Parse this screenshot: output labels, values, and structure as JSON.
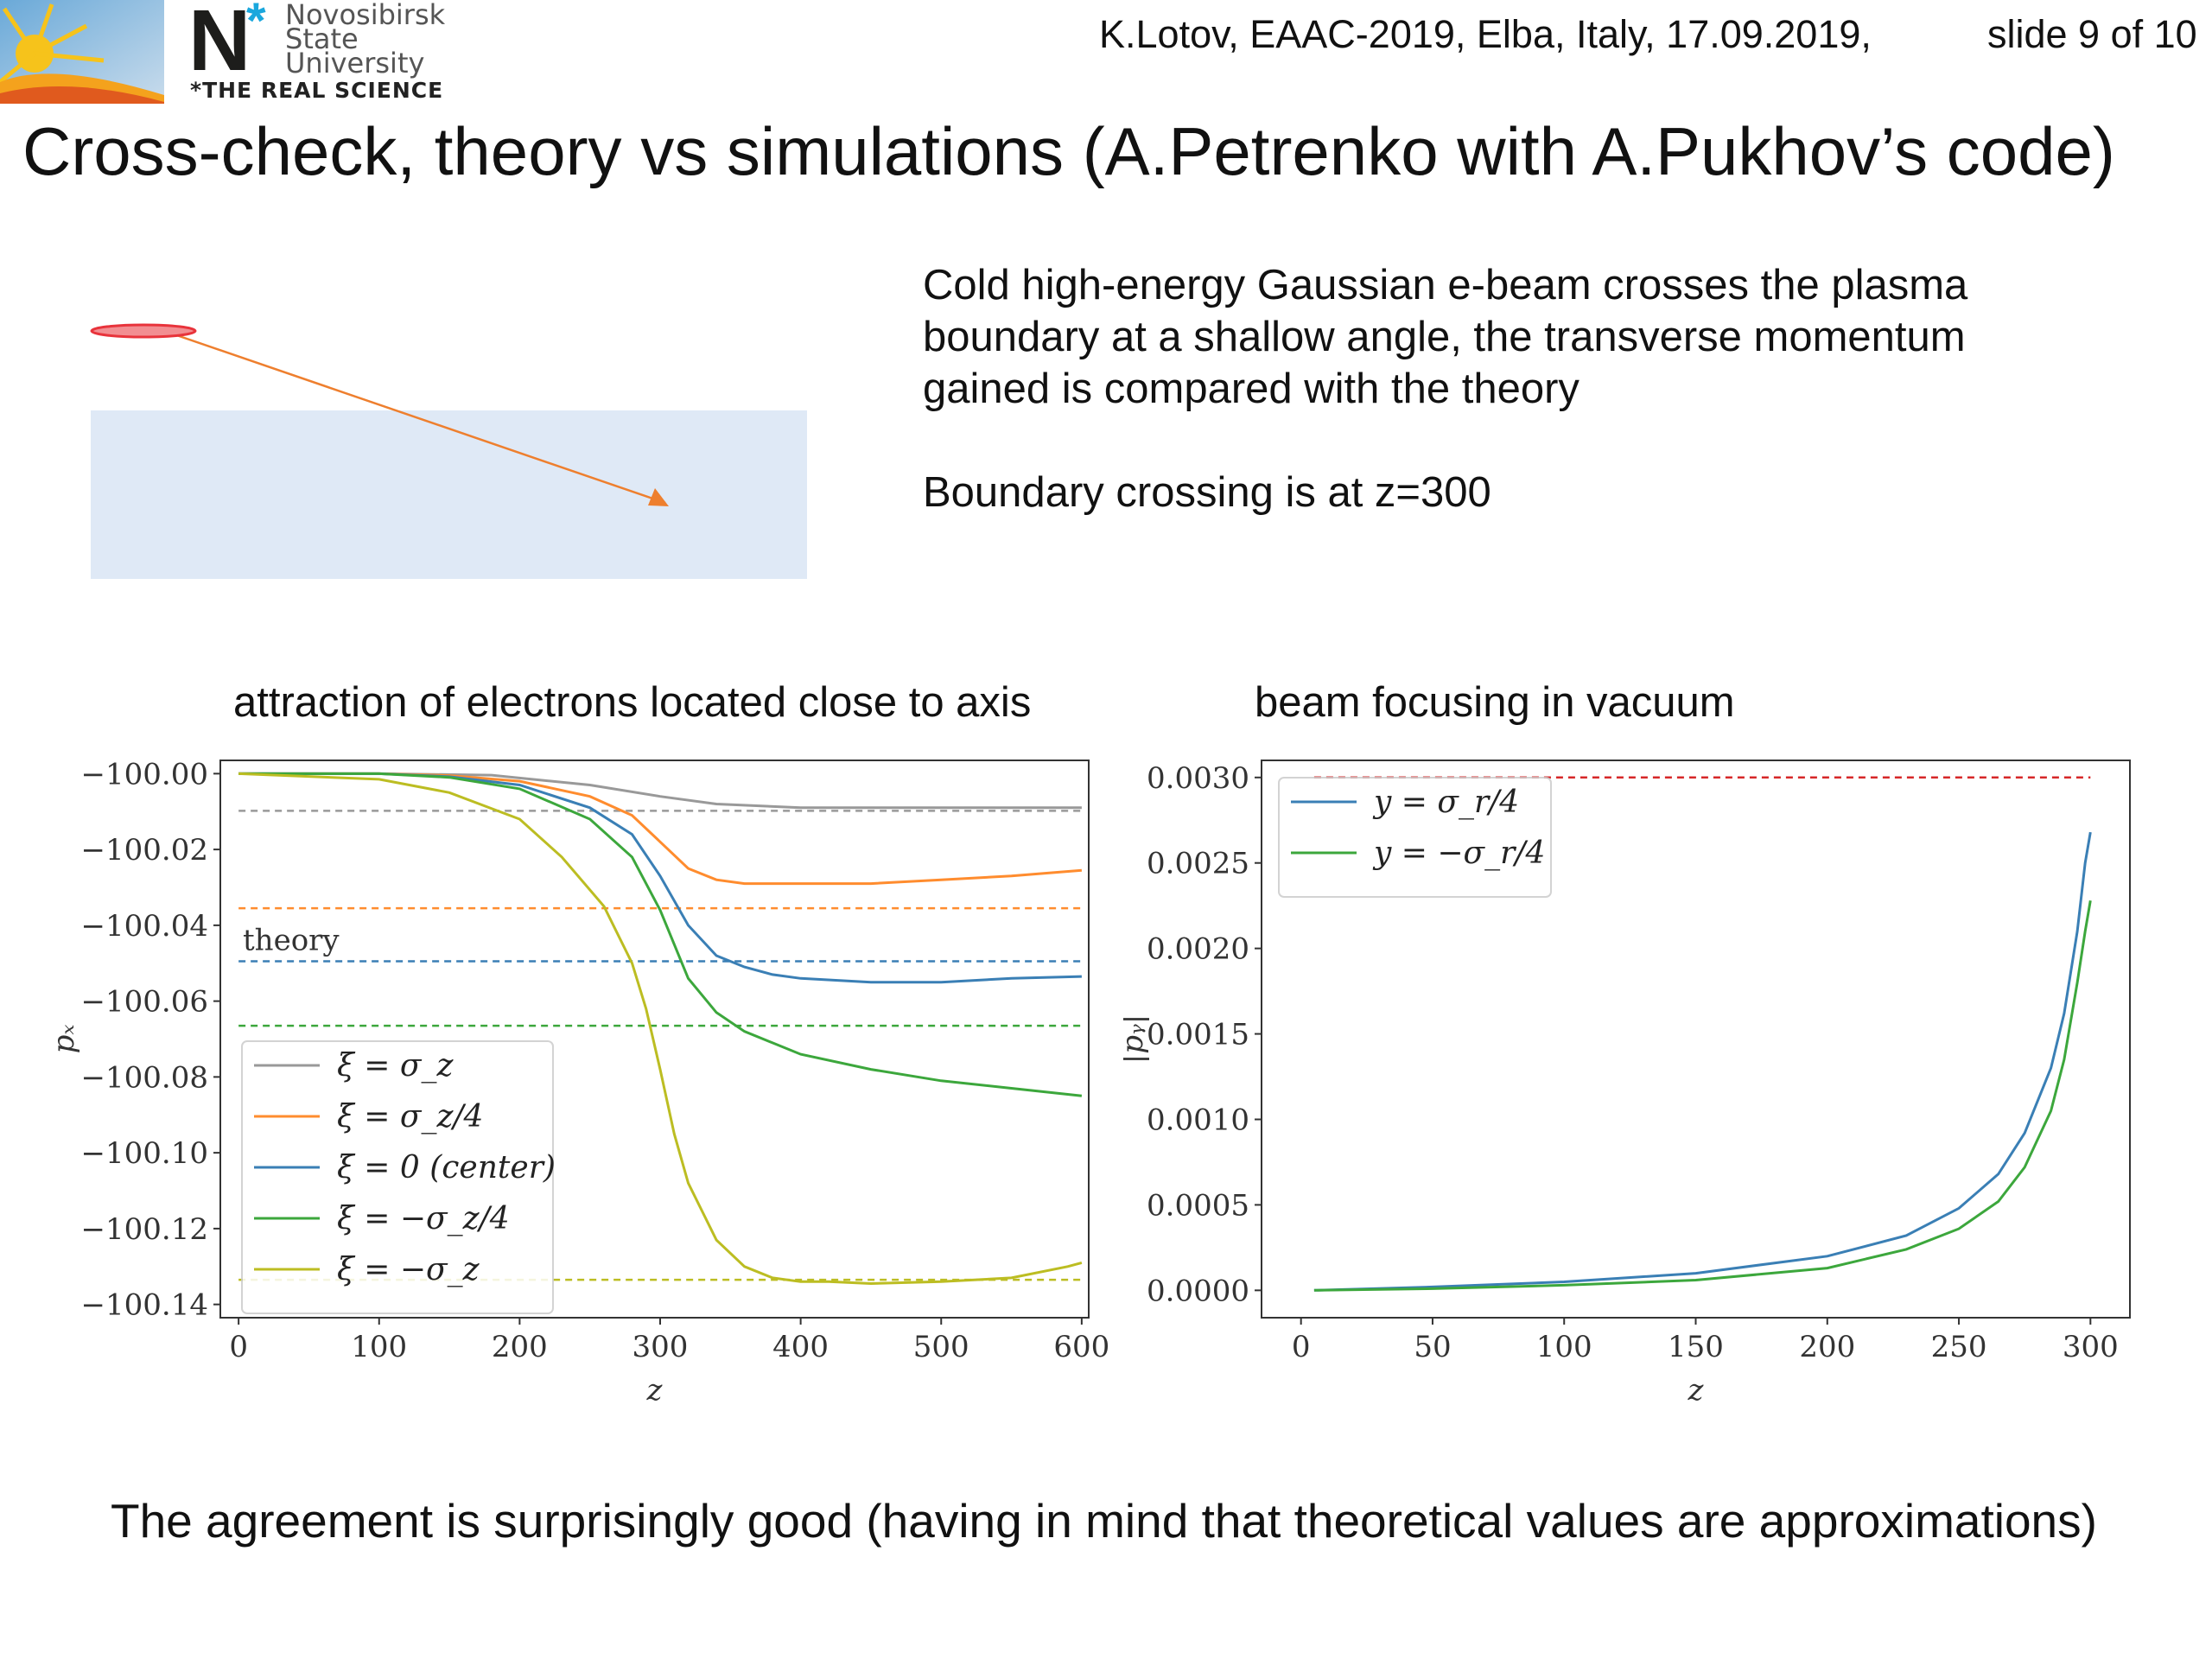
{
  "header": {
    "logo_text": [
      "Novosibirsk",
      "State",
      "University"
    ],
    "logo_motto": "*THE REAL SCIENCE",
    "logo_letter": "N",
    "info": "K.Lotov, EAAC-2019, Elba, Italy, 17.09.2019,",
    "slide": "slide 9 of 10"
  },
  "title": "Cross-check, theory vs simulations (A.Petrenko with A.Pukhov’s code)",
  "description": [
    "Cold high-energy Gaussian e-beam crosses the plasma",
    "boundary at a shallow angle, the transverse momentum",
    "gained is compared with the theory",
    "Boundary crossing is at z=300"
  ],
  "schematic": {
    "beam_color": "#e8333b",
    "plasma_color": "#dfe9f6",
    "arrow_color": "#ee7f2e"
  },
  "conclusion": "The agreement is surprisingly good (having in mind that theoretical values are approximations)",
  "chart_data": [
    {
      "type": "line",
      "title": "attraction of electrons located close to axis",
      "xlabel": "z",
      "ylabel": "p_x",
      "xlim": [
        -13,
        605
      ],
      "ylim": [
        -100.1435,
        -99.9965
      ],
      "xticks": [
        "0",
        "100",
        "200",
        "300",
        "400",
        "500",
        "600"
      ],
      "yticks": [
        "−100.00",
        "−100.02",
        "−100.04",
        "−100.06",
        "−100.08",
        "−100.10",
        "−100.12",
        "−100.14"
      ],
      "ytick_values": [
        -100.0,
        -100.02,
        -100.04,
        -100.06,
        -100.08,
        -100.1,
        -100.12,
        -100.14
      ],
      "xtick_values": [
        0,
        100,
        200,
        300,
        400,
        500,
        600
      ],
      "annotation": "theory",
      "legend_position": "lower-left",
      "series": [
        {
          "name": "ξ = σ_z",
          "color": "#999999",
          "x": [
            0,
            100,
            180,
            250,
            300,
            340,
            400,
            450,
            500,
            600
          ],
          "y": [
            -100.0,
            -100.0,
            -100.0004,
            -100.003,
            -100.006,
            -100.008,
            -100.009,
            -100.009,
            -100.009,
            -100.009
          ],
          "theory": -100.0098
        },
        {
          "name": "ξ = σ_z/4",
          "color": "#ff8c2e",
          "x": [
            0,
            100,
            150,
            200,
            250,
            280,
            300,
            320,
            340,
            360,
            400,
            450,
            500,
            550,
            600
          ],
          "y": [
            -100.0,
            -100.0,
            -100.0005,
            -100.002,
            -100.006,
            -100.011,
            -100.018,
            -100.025,
            -100.028,
            -100.029,
            -100.029,
            -100.029,
            -100.028,
            -100.027,
            -100.0255
          ],
          "theory": -100.0355
        },
        {
          "name": "ξ = 0 (center)",
          "color": "#3a7fb5",
          "x": [
            0,
            100,
            150,
            200,
            250,
            280,
            300,
            320,
            340,
            360,
            380,
            400,
            450,
            500,
            550,
            600
          ],
          "y": [
            -100.0,
            -100.0,
            -100.0008,
            -100.003,
            -100.009,
            -100.016,
            -100.027,
            -100.04,
            -100.048,
            -100.051,
            -100.053,
            -100.054,
            -100.055,
            -100.055,
            -100.054,
            -100.0535
          ],
          "theory": -100.0495
        },
        {
          "name": "ξ = −σ_z/4",
          "color": "#3ca73c",
          "x": [
            0,
            100,
            150,
            200,
            250,
            280,
            300,
            320,
            340,
            360,
            380,
            400,
            450,
            500,
            550,
            600
          ],
          "y": [
            -100.0,
            -100.0,
            -100.001,
            -100.004,
            -100.012,
            -100.022,
            -100.036,
            -100.054,
            -100.063,
            -100.068,
            -100.071,
            -100.074,
            -100.078,
            -100.081,
            -100.083,
            -100.085
          ],
          "theory": -100.0665
        },
        {
          "name": "ξ = −σ_z",
          "color": "#bcbd22",
          "x": [
            0,
            100,
            150,
            200,
            230,
            260,
            280,
            290,
            300,
            310,
            320,
            340,
            360,
            380,
            400,
            420,
            450,
            500,
            550,
            590,
            600
          ],
          "y": [
            -100.0,
            -100.0015,
            -100.005,
            -100.012,
            -100.022,
            -100.035,
            -100.05,
            -100.062,
            -100.078,
            -100.095,
            -100.108,
            -100.123,
            -100.13,
            -100.133,
            -100.134,
            -100.134,
            -100.1345,
            -100.134,
            -100.133,
            -100.13,
            -100.129
          ],
          "theory": -100.1335
        }
      ]
    },
    {
      "type": "line",
      "title": "beam focusing in vacuum",
      "xlabel": "z",
      "ylabel": "|p_y|",
      "xlim": [
        -15,
        315
      ],
      "ylim": [
        -0.00016,
        0.0031
      ],
      "xticks": [
        "0",
        "50",
        "100",
        "150",
        "200",
        "250",
        "300"
      ],
      "xtick_values": [
        0,
        50,
        100,
        150,
        200,
        250,
        300
      ],
      "yticks": [
        "0.0000",
        "0.0005",
        "0.0010",
        "0.0015",
        "0.0020",
        "0.0025",
        "0.0030"
      ],
      "ytick_values": [
        0,
        0.0005,
        0.001,
        0.0015,
        0.002,
        0.0025,
        0.003
      ],
      "legend_position": "top-left",
      "reference_line": {
        "y": 0.003,
        "color": "#d62728"
      },
      "series": [
        {
          "name": "y = σ_r/4",
          "color": "#3a7fb5",
          "x": [
            5,
            50,
            100,
            150,
            200,
            230,
            250,
            265,
            275,
            285,
            290,
            295,
            298,
            300
          ],
          "y": [
            0.0,
            2e-05,
            5e-05,
            0.0001,
            0.0002,
            0.00032,
            0.00048,
            0.00068,
            0.00092,
            0.0013,
            0.00162,
            0.0021,
            0.0025,
            0.00268
          ]
        },
        {
          "name": "y = −σ_r/4",
          "color": "#3ca73c",
          "x": [
            5,
            50,
            100,
            150,
            200,
            230,
            250,
            265,
            275,
            285,
            290,
            295,
            298,
            300
          ],
          "y": [
            0.0,
            1e-05,
            3e-05,
            6e-05,
            0.00013,
            0.00024,
            0.00036,
            0.00052,
            0.00072,
            0.00105,
            0.00135,
            0.0018,
            0.0021,
            0.00228
          ]
        }
      ]
    }
  ]
}
